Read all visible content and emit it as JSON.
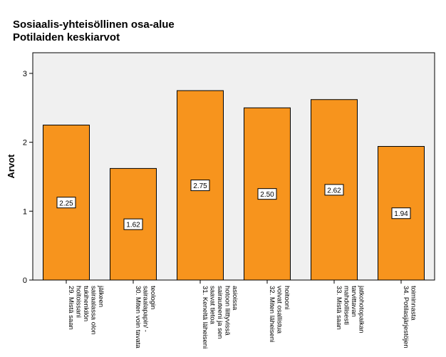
{
  "chart_data": {
    "type": "bar",
    "title": "Sosiaalis-yhteisöllinen osa-alue",
    "subtitle": "Potilaiden keskiarvot",
    "xlabel": "",
    "ylabel": "Arvot",
    "ylim": [
      0,
      3.3
    ],
    "yticks": [
      0,
      1,
      2,
      3
    ],
    "grid": false,
    "colors": {
      "bar": "#f7941d",
      "bar_stroke": "#000000",
      "plot_bg": "#f0f0f0"
    },
    "categories": [
      [
        "29. Mistä saan",
        "hoitoissani",
        "tukihenkilön",
        "sairaalassa olon",
        "jälkeen"
      ],
      [
        "30. Miten voin tavata",
        "sairaalapapin/ -",
        "teologin"
      ],
      [
        "31. Keneltä läheiseni",
        "saavat tietoa",
        "sairauteeni ja sen",
        "hotoon liittyvissä",
        "asioissa"
      ],
      [
        "32. Miten läheiseni",
        "voivat osallistua",
        "hoitooni"
      ],
      [
        "33. Mistä saan",
        "mahdollisesti",
        "tarvittavan",
        "jatkohotopaikan"
      ],
      [
        "34. Potilasjärjestöjen",
        "toiminnasta"
      ]
    ],
    "values": [
      2.25,
      1.62,
      2.75,
      2.5,
      2.62,
      1.94
    ],
    "value_labels": [
      "2.25",
      "1.62",
      "2.75",
      "2.50",
      "2.62",
      "1.94"
    ]
  }
}
